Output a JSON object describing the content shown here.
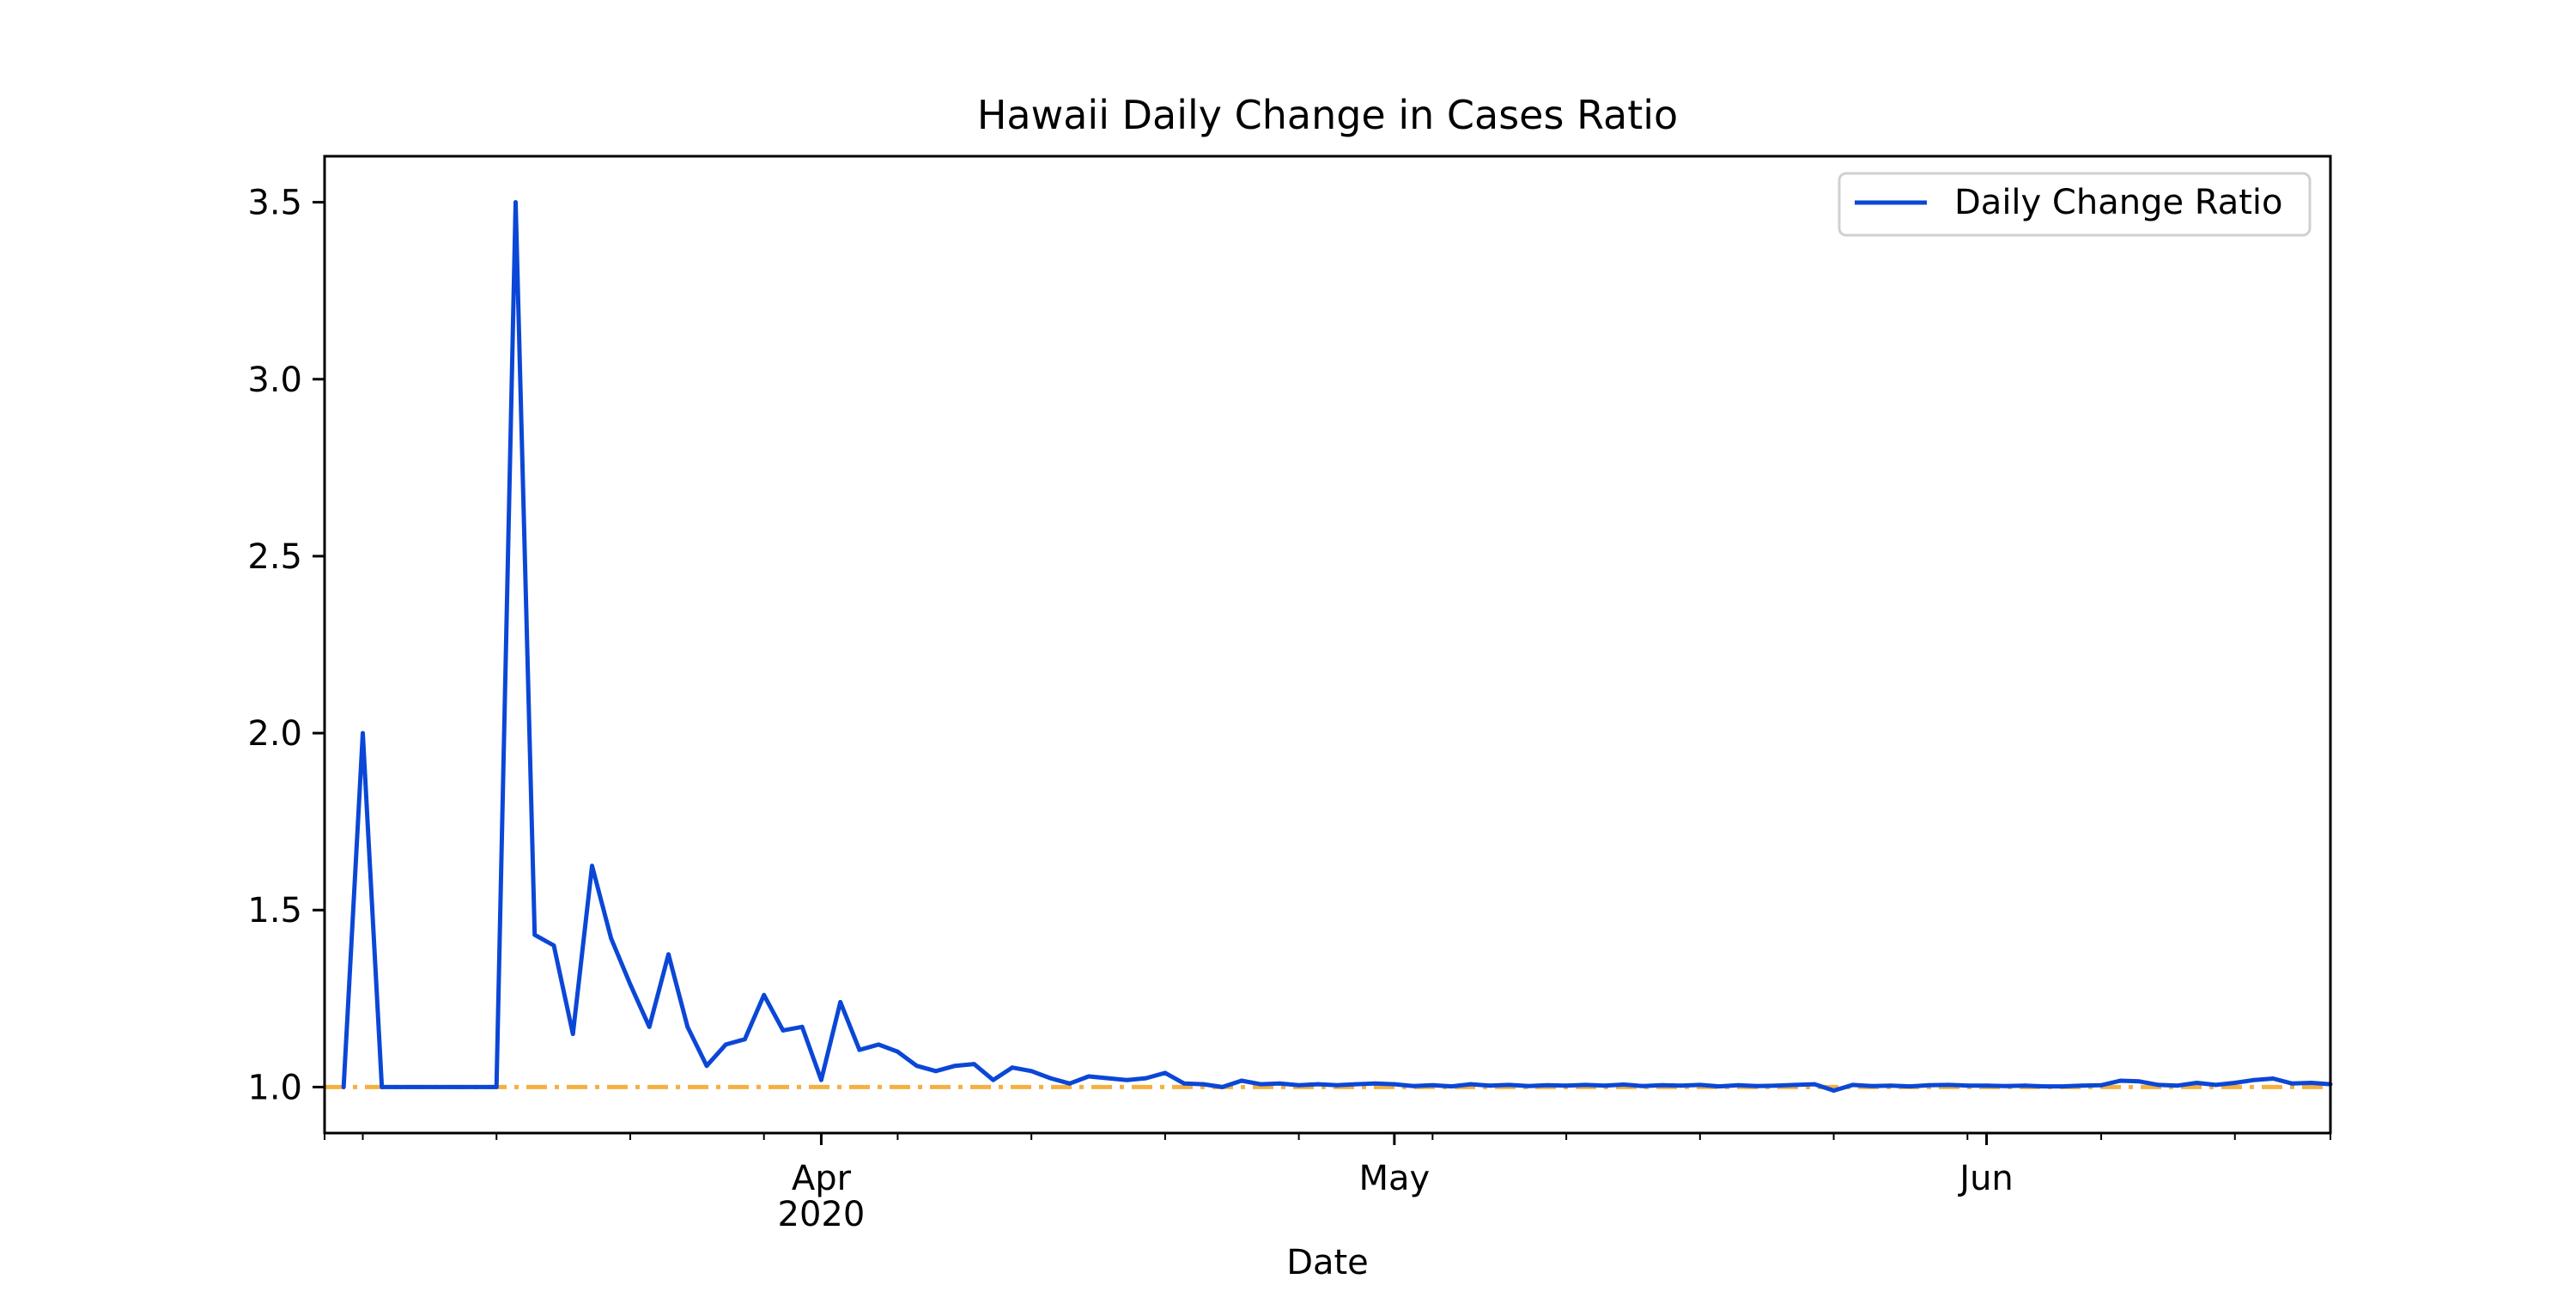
{
  "chart_data": {
    "type": "line",
    "title": "Hawaii Daily Change in Cases Ratio",
    "xlabel": "Date",
    "ylabel": "",
    "x_axis_type": "date",
    "xlim": [
      "2020-03-06",
      "2020-06-19"
    ],
    "ylim": [
      0.87,
      3.63
    ],
    "yticks": [
      1.0,
      1.5,
      2.0,
      2.5,
      3.0,
      3.5
    ],
    "ytick_labels": [
      "1.0",
      "1.5",
      "2.0",
      "2.5",
      "3.0",
      "3.5"
    ],
    "xticks": [
      {
        "date": "2020-04-01",
        "label": "Apr",
        "sublabel": "2020"
      },
      {
        "date": "2020-05-01",
        "label": "May",
        "sublabel": ""
      },
      {
        "date": "2020-06-01",
        "label": "Jun",
        "sublabel": ""
      }
    ],
    "minor_xtick_dates": [
      "2020-03-06",
      "2020-03-08",
      "2020-03-15",
      "2020-03-22",
      "2020-03-29",
      "2020-04-05",
      "2020-04-12",
      "2020-04-19",
      "2020-04-26",
      "2020-05-03",
      "2020-05-10",
      "2020-05-17",
      "2020-05-24",
      "2020-05-31",
      "2020-06-07",
      "2020-06-14",
      "2020-06-19"
    ],
    "grid": false,
    "legend": {
      "position": "top-right"
    },
    "reference_line": {
      "y": 1.0,
      "color": "#f5b041",
      "style": "dash-dot"
    },
    "series": [
      {
        "name": "Daily Change Ratio",
        "color": "#0b47d6",
        "dates": [
          "2020-03-07",
          "2020-03-08",
          "2020-03-09",
          "2020-03-10",
          "2020-03-11",
          "2020-03-12",
          "2020-03-13",
          "2020-03-14",
          "2020-03-15",
          "2020-03-16",
          "2020-03-17",
          "2020-03-18",
          "2020-03-19",
          "2020-03-20",
          "2020-03-21",
          "2020-03-22",
          "2020-03-23",
          "2020-03-24",
          "2020-03-25",
          "2020-03-26",
          "2020-03-27",
          "2020-03-28",
          "2020-03-29",
          "2020-03-30",
          "2020-03-31",
          "2020-04-01",
          "2020-04-02",
          "2020-04-03",
          "2020-04-04",
          "2020-04-05",
          "2020-04-06",
          "2020-04-07",
          "2020-04-08",
          "2020-04-09",
          "2020-04-10",
          "2020-04-11",
          "2020-04-12",
          "2020-04-13",
          "2020-04-14",
          "2020-04-15",
          "2020-04-16",
          "2020-04-17",
          "2020-04-18",
          "2020-04-19",
          "2020-04-20",
          "2020-04-21",
          "2020-04-22",
          "2020-04-23",
          "2020-04-24",
          "2020-04-25",
          "2020-04-26",
          "2020-04-27",
          "2020-04-28",
          "2020-04-29",
          "2020-04-30",
          "2020-05-01",
          "2020-05-02",
          "2020-05-03",
          "2020-05-04",
          "2020-05-05",
          "2020-05-06",
          "2020-05-07",
          "2020-05-08",
          "2020-05-09",
          "2020-05-10",
          "2020-05-11",
          "2020-05-12",
          "2020-05-13",
          "2020-05-14",
          "2020-05-15",
          "2020-05-16",
          "2020-05-17",
          "2020-05-18",
          "2020-05-19",
          "2020-05-20",
          "2020-05-21",
          "2020-05-22",
          "2020-05-23",
          "2020-05-24",
          "2020-05-25",
          "2020-05-26",
          "2020-05-27",
          "2020-05-28",
          "2020-05-29",
          "2020-05-30",
          "2020-05-31",
          "2020-06-01",
          "2020-06-02",
          "2020-06-03",
          "2020-06-04",
          "2020-06-05",
          "2020-06-06",
          "2020-06-07",
          "2020-06-08",
          "2020-06-09",
          "2020-06-10",
          "2020-06-11",
          "2020-06-12",
          "2020-06-13",
          "2020-06-14",
          "2020-06-15",
          "2020-06-16",
          "2020-06-17",
          "2020-06-18",
          "2020-06-19"
        ],
        "values": [
          1.0,
          2.0,
          1.0,
          1.0,
          1.0,
          1.0,
          1.0,
          1.0,
          1.0,
          3.5,
          1.43,
          1.4,
          1.15,
          1.625,
          1.42,
          1.29,
          1.17,
          1.375,
          1.17,
          1.06,
          1.12,
          1.135,
          1.26,
          1.16,
          1.17,
          1.02,
          1.24,
          1.105,
          1.12,
          1.1,
          1.06,
          1.045,
          1.06,
          1.065,
          1.02,
          1.055,
          1.045,
          1.025,
          1.01,
          1.03,
          1.025,
          1.02,
          1.025,
          1.04,
          1.01,
          1.008,
          1.0,
          1.018,
          1.008,
          1.01,
          1.005,
          1.008,
          1.005,
          1.008,
          1.01,
          1.008,
          1.003,
          1.005,
          1.002,
          1.008,
          1.004,
          1.006,
          1.003,
          1.005,
          1.004,
          1.006,
          1.004,
          1.007,
          1.003,
          1.005,
          1.004,
          1.006,
          1.002,
          1.005,
          1.003,
          1.004,
          1.006,
          1.008,
          0.99,
          1.006,
          1.003,
          1.004,
          1.002,
          1.005,
          1.006,
          1.004,
          1.004,
          1.003,
          1.004,
          1.002,
          1.002,
          1.004,
          1.005,
          1.018,
          1.016,
          1.006,
          1.004,
          1.012,
          1.006,
          1.012,
          1.02,
          1.024,
          1.01,
          1.012,
          1.008
        ]
      }
    ]
  }
}
